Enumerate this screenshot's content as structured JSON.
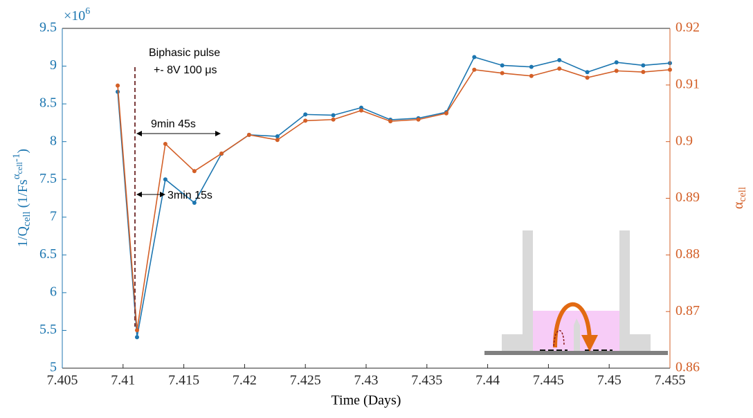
{
  "chart_data": {
    "type": "line",
    "x": [
      7.40956,
      7.41115,
      7.41348,
      7.41587,
      7.4181,
      7.42037,
      7.4227,
      7.425,
      7.4273,
      7.4296,
      7.432,
      7.4343,
      7.4366,
      7.4389,
      7.4412,
      7.4436,
      7.4459,
      7.4482,
      7.4506,
      7.4528,
      7.455
    ],
    "series": [
      {
        "name": "1/Qcell",
        "color": "#1c76b0",
        "axis": "y",
        "values": [
          8.66,
          5.41,
          7.5,
          7.19,
          7.84,
          8.09,
          8.07,
          8.36,
          8.35,
          8.45,
          8.29,
          8.31,
          8.39,
          9.12,
          9.01,
          8.99,
          9.08,
          8.92,
          9.05,
          9.01,
          9.04
        ]
      },
      {
        "name": "alpha cell",
        "color": "#d35f27",
        "axis": "y2",
        "values": [
          0.9099,
          0.8667,
          0.8996,
          0.8948,
          0.8979,
          0.9012,
          0.9003,
          0.9037,
          0.9039,
          0.9055,
          0.9036,
          0.9039,
          0.905,
          0.9127,
          0.9121,
          0.9116,
          0.9129,
          0.9113,
          0.9125,
          0.9123,
          0.9127
        ]
      }
    ],
    "xlim": [
      7.405,
      7.455
    ],
    "xticks": [
      7.405,
      7.41,
      7.415,
      7.42,
      7.425,
      7.43,
      7.435,
      7.44,
      7.445,
      7.45,
      7.455
    ],
    "ylim": [
      5,
      9.5
    ],
    "yticks": [
      5,
      5.5,
      6,
      6.5,
      7,
      7.5,
      8,
      8.5,
      9,
      9.5
    ],
    "y2lim": [
      0.86,
      0.92
    ],
    "y2ticks": [
      0.86,
      0.87,
      0.88,
      0.89,
      0.9,
      0.91,
      0.92
    ],
    "x_label": "Time (Days)",
    "y_label": [
      "1/Q",
      "cell",
      " (1/Fs",
      "α",
      "cell",
      "-1",
      ")"
    ],
    "y2_label": [
      "α",
      "cell"
    ],
    "y_exponent": [
      "×10",
      "6"
    ],
    "annotations": [
      "Biphasic pulse",
      "+- 8V 100 μs",
      "9min 45s",
      "3min 15s"
    ]
  }
}
